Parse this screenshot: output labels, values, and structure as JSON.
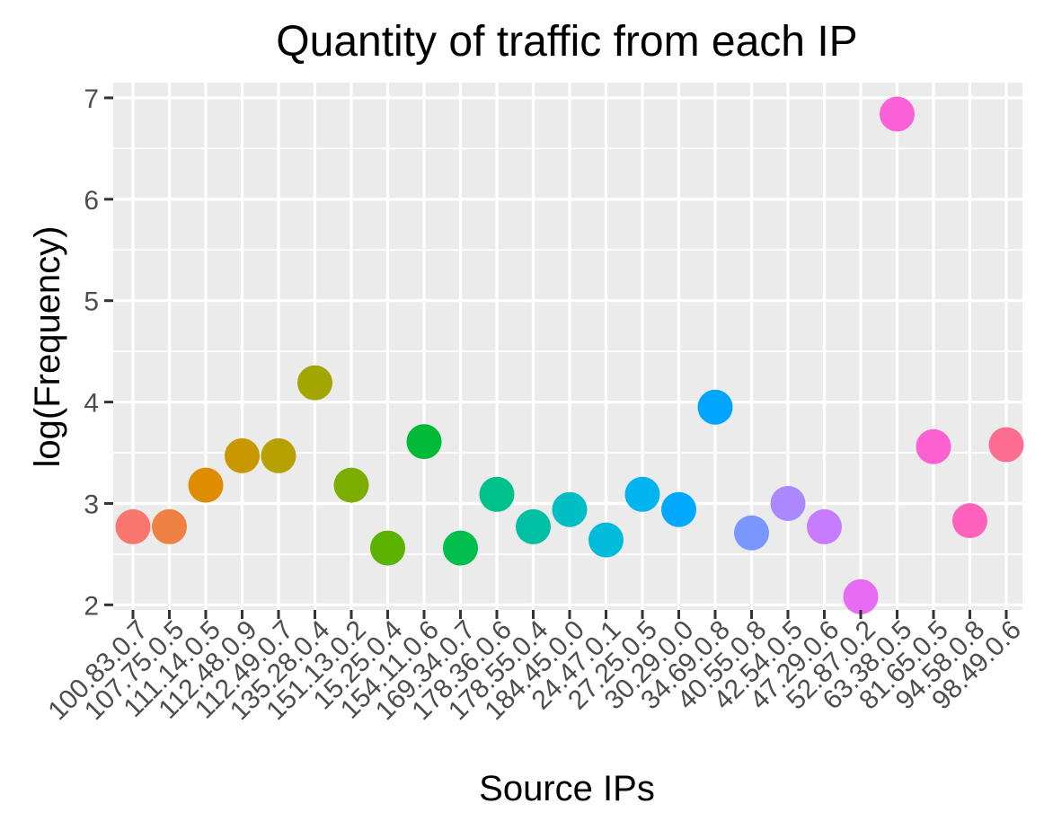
{
  "chart_data": {
    "type": "scatter",
    "title": "Quantity of traffic from each IP",
    "xlabel": "Source IPs",
    "ylabel": "log(Frequency)",
    "ylim": [
      1.95,
      7.15
    ],
    "yticks": [
      2,
      3,
      4,
      5,
      6,
      7
    ],
    "grid": true,
    "legend": "none",
    "categories": [
      "100.83.0.7",
      "107.75.0.5",
      "111.14.0.5",
      "112.48.0.9",
      "112.49.0.7",
      "135.28.0.4",
      "151.13.0.2",
      "15.25.0.4",
      "154.11.0.6",
      "169.34.0.7",
      "178.36.0.6",
      "178.55.0.4",
      "184.45.0.0",
      "24.47.0.1",
      "27.25.0.5",
      "30.29.0.0",
      "34.69.0.8",
      "40.55.0.8",
      "42.54.0.5",
      "47.29.0.6",
      "52.87.0.2",
      "63.38.0.5",
      "81.65.0.5",
      "94.58.0.8",
      "98.49.0.6"
    ],
    "values": [
      2.77,
      2.77,
      3.18,
      3.47,
      3.47,
      4.19,
      3.18,
      2.56,
      3.61,
      2.56,
      3.09,
      2.77,
      2.94,
      2.64,
      3.09,
      2.94,
      3.95,
      2.71,
      3.0,
      2.77,
      2.08,
      6.84,
      3.56,
      2.83,
      3.58
    ],
    "colors": [
      "#F8766D",
      "#EE8043",
      "#DE8C00",
      "#C99800",
      "#B7A100",
      "#A3A500",
      "#7CAE00",
      "#5BB300",
      "#00BA38",
      "#00BF4C",
      "#00C08B",
      "#00BFA3",
      "#00BFC4",
      "#00BBD9",
      "#00B4EF",
      "#00A9FF",
      "#00A5FF",
      "#7997FF",
      "#AC88FF",
      "#C77CFF",
      "#E76BF3",
      "#FB61D7",
      "#FD61D1",
      "#FF62BC",
      "#FF6C91"
    ],
    "panel_background": "#EBEBEB",
    "grid_color": "#FFFFFF"
  }
}
